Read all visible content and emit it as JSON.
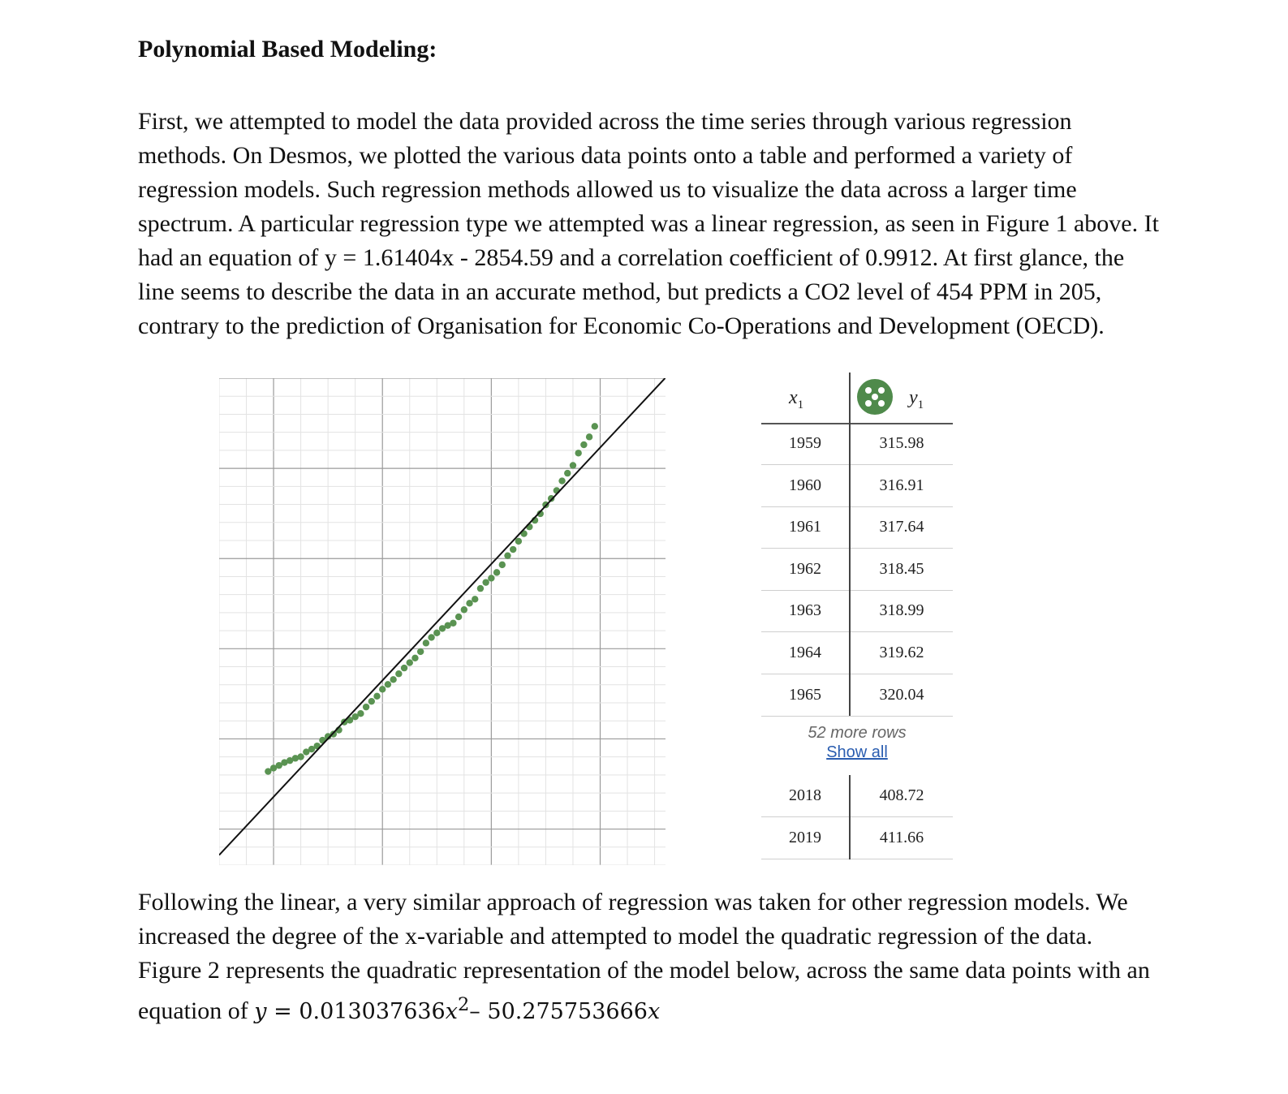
{
  "heading": "Polynomial Based Modeling:",
  "paragraph1": "First, we attempted to model the data provided across the time series through various regression methods. On Desmos, we plotted the various data points onto a table and performed a variety of regression models. Such regression methods allowed us to visualize the data across a larger time spectrum. A particular regression type we attempted was a linear regression, as seen in Figure 1 above. It had an equation of y = 1.61404x - 2854.59 and a correlation coefficient of 0.9912. At first glance, the line seems to describe the data in an accurate method, but predicts a CO2 level of 454 PPM in 205, contrary to the prediction of Organisation for Economic Co-Operations and Development (OECD).",
  "paragraph2": "Following the linear, a very similar approach of regression was taken for other regression models. We increased the degree of the x-variable and attempted to model the quadratic regression of the data. Figure 2 represents the quadratic representation of the model below, across the same data points with an equation of",
  "equation": {
    "y": "y",
    "eq": " = ",
    "c1": "0.013037636",
    "x": "x",
    "sq": "2",
    "minus": "– ",
    "c2": "50.275753666",
    "x2": "x"
  },
  "table": {
    "x_header": "x",
    "y_header": "y",
    "subscript": "1",
    "rows": [
      {
        "x": "1959",
        "y": "315.98"
      },
      {
        "x": "1960",
        "y": "316.91"
      },
      {
        "x": "1961",
        "y": "317.64"
      },
      {
        "x": "1962",
        "y": "318.45"
      },
      {
        "x": "1963",
        "y": "318.99"
      },
      {
        "x": "1964",
        "y": "319.62"
      },
      {
        "x": "1965",
        "y": "320.04"
      }
    ],
    "more_rows": "52 more rows",
    "show_all": "Show all",
    "tail_rows": [
      {
        "x": "2018",
        "y": "408.72"
      },
      {
        "x": "2019",
        "y": "411.66"
      }
    ]
  },
  "chart_data": {
    "type": "scatter",
    "x": [
      1959,
      1960,
      1961,
      1962,
      1963,
      1964,
      1965,
      1966,
      1967,
      1968,
      1969,
      1970,
      1971,
      1972,
      1973,
      1974,
      1975,
      1976,
      1977,
      1978,
      1979,
      1980,
      1981,
      1982,
      1983,
      1984,
      1985,
      1986,
      1987,
      1988,
      1989,
      1990,
      1991,
      1992,
      1993,
      1994,
      1995,
      1996,
      1997,
      1998,
      1999,
      2000,
      2001,
      2002,
      2003,
      2004,
      2005,
      2006,
      2007,
      2008,
      2009,
      2010,
      2011,
      2012,
      2013,
      2014,
      2015,
      2016,
      2017,
      2018,
      2019
    ],
    "y": [
      315.98,
      316.91,
      317.64,
      318.45,
      318.99,
      319.62,
      320.04,
      321.38,
      322.16,
      323.04,
      324.62,
      325.68,
      326.32,
      327.46,
      329.68,
      330.19,
      331.13,
      332.03,
      333.84,
      335.41,
      336.84,
      338.75,
      340.11,
      341.45,
      343.05,
      344.65,
      346.12,
      347.42,
      349.19,
      351.57,
      353.12,
      354.39,
      355.61,
      356.45,
      357.1,
      358.83,
      360.82,
      362.61,
      363.73,
      366.7,
      368.38,
      369.55,
      371.14,
      373.28,
      375.8,
      377.52,
      379.8,
      381.9,
      383.79,
      385.6,
      387.43,
      389.9,
      391.65,
      393.85,
      396.52,
      398.65,
      400.83,
      404.24,
      406.55,
      408.72,
      411.66
    ],
    "regression_line": {
      "slope": 1.61404,
      "intercept": -2854.59
    },
    "point_color": "#5a9352",
    "line_color": "#111111",
    "xlim": [
      1950,
      2032
    ],
    "ylim": [
      290,
      425
    ],
    "grid": true
  }
}
